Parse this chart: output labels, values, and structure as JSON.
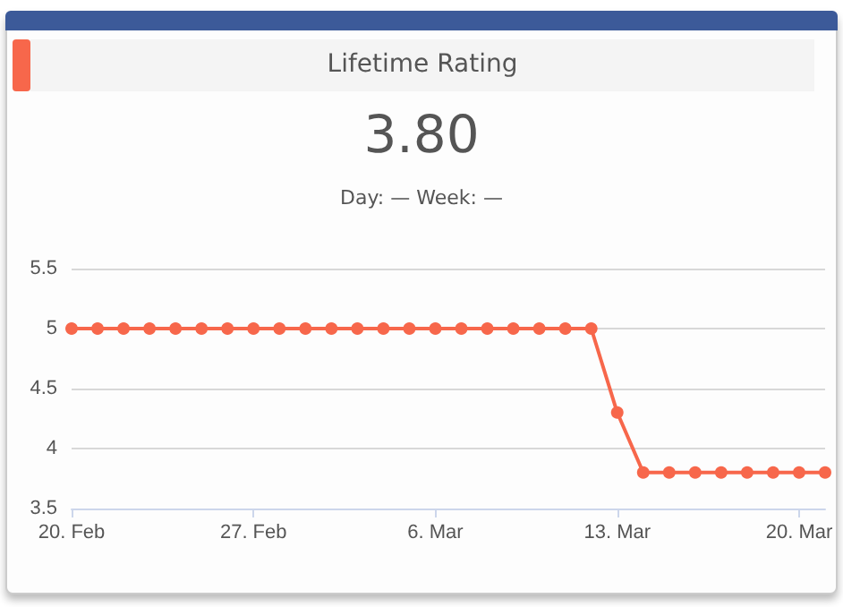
{
  "chart_data": {
    "type": "line",
    "title": "Lifetime Rating",
    "subtitle": "3.80",
    "annotations": [
      "Day: —   Week: —"
    ],
    "x": [
      "--02-20",
      "--02-21",
      "--02-22",
      "--02-23",
      "--02-24",
      "--02-25",
      "--02-26",
      "--02-27",
      "--02-28",
      "--03-01",
      "--03-02",
      "--03-03",
      "--03-04",
      "--03-05",
      "--03-06",
      "--03-07",
      "--03-08",
      "--03-09",
      "--03-10",
      "--03-11",
      "--03-12",
      "--03-13",
      "--03-14",
      "--03-15",
      "--03-16",
      "--03-17",
      "--03-18",
      "--03-19",
      "--03-20",
      "--03-21"
    ],
    "series": [
      {
        "color": "#f7674b",
        "values": [
          5,
          5,
          5,
          5,
          5,
          5,
          5,
          5,
          5,
          5,
          5,
          5,
          5,
          5,
          5,
          5,
          5,
          5,
          5,
          5,
          5,
          4.3,
          3.8,
          3.8,
          3.8,
          3.8,
          3.8,
          3.8,
          3.8,
          3.8
        ]
      }
    ],
    "xlim": [
      "--02-20",
      "--03-21"
    ],
    "xticks": [
      {
        "value": "--02-20",
        "label": "20. Feb"
      },
      {
        "value": "--02-27",
        "label": "27. Feb"
      },
      {
        "value": "--03-06",
        "label": "6. Mar"
      },
      {
        "value": "--03-13",
        "label": "13. Mar"
      },
      {
        "value": "--03-20",
        "label": "20. Mar"
      }
    ],
    "ylim": [
      3.5,
      5.5
    ],
    "yticks": [
      3.5,
      4,
      4.5,
      5,
      5.5
    ],
    "grid": "y",
    "marker": "circle",
    "line_style": "solid"
  }
}
